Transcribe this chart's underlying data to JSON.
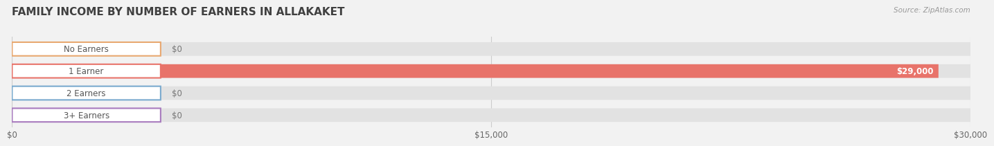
{
  "title": "FAMILY INCOME BY NUMBER OF EARNERS IN ALLAKAKET",
  "source": "Source: ZipAtlas.com",
  "categories": [
    "No Earners",
    "1 Earner",
    "2 Earners",
    "3+ Earners"
  ],
  "values": [
    0,
    29000,
    0,
    0
  ],
  "bar_colors": [
    "#f2c49b",
    "#e8736a",
    "#a8c4e0",
    "#c4a8d4"
  ],
  "label_border_colors": [
    "#e8a870",
    "#e8736a",
    "#7aaace",
    "#a87abe"
  ],
  "xlim": [
    0,
    30000
  ],
  "xticks": [
    0,
    15000,
    30000
  ],
  "xtick_labels": [
    "$0",
    "$15,000",
    "$30,000"
  ],
  "bar_height": 0.62,
  "background_color": "#f2f2f2",
  "bar_bg_color": "#e2e2e2",
  "title_color": "#404040",
  "value_labels": [
    "$0",
    "$29,000",
    "$0",
    "$0"
  ],
  "grid_color": "#cccccc",
  "label_bg": "#ffffff",
  "label_text_color": "#555555",
  "value_text_color_inside": "#ffffff",
  "value_text_color_outside": "#777777",
  "title_fontsize": 11,
  "tick_fontsize": 8.5,
  "bar_label_fontsize": 8.5
}
